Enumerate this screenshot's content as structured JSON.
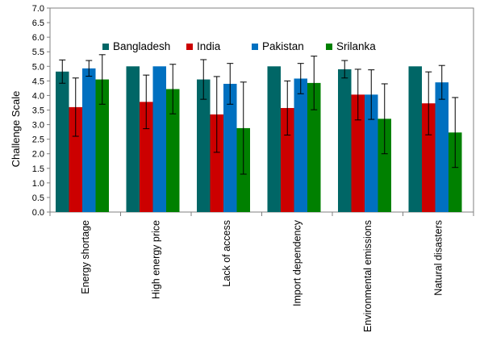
{
  "chart_data": {
    "type": "bar",
    "ylabel": "Challenge Scale",
    "xlabel": "",
    "ylim": [
      0,
      7
    ],
    "ytick_step": 0.5,
    "grid": false,
    "legend_position": "top-right",
    "categories": [
      "Energy shortage",
      "High energy price",
      "Lack of access",
      "Import dependency",
      "Environmental emissions",
      "Natural disasters"
    ],
    "series": [
      {
        "name": "Bangladesh",
        "color": "#006666",
        "values": [
          4.82,
          5.0,
          4.55,
          5.0,
          4.9,
          5.0
        ],
        "error": [
          0.4,
          0.0,
          0.68,
          0.0,
          0.3,
          0.0
        ]
      },
      {
        "name": "India",
        "color": "#CC0000",
        "values": [
          3.6,
          3.78,
          3.35,
          3.57,
          4.03,
          3.73
        ],
        "error": [
          1.0,
          0.92,
          1.3,
          0.93,
          0.87,
          1.08
        ]
      },
      {
        "name": "Pakistan",
        "color": "#0070C0",
        "values": [
          4.93,
          5.0,
          4.4,
          4.58,
          4.03,
          4.45
        ],
        "error": [
          0.27,
          0.0,
          0.7,
          0.52,
          0.85,
          0.58
        ]
      },
      {
        "name": "Srilanka",
        "color": "#008000",
        "values": [
          4.55,
          4.22,
          2.88,
          4.43,
          3.2,
          2.73
        ],
        "error": [
          0.85,
          0.85,
          1.58,
          0.92,
          1.2,
          1.2
        ]
      }
    ]
  }
}
